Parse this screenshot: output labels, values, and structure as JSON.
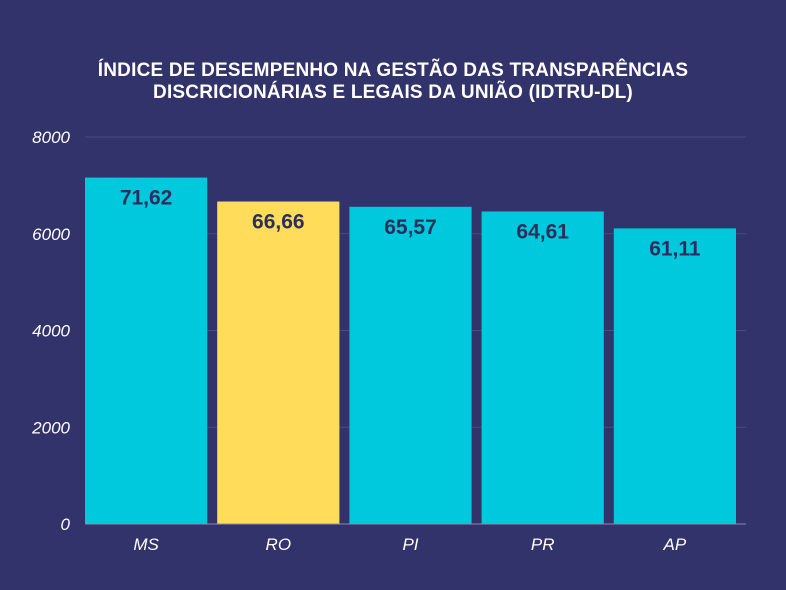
{
  "chart_data": {
    "type": "bar",
    "title_lines": [
      "ÍNDICE DE DESEMPENHO NA GESTÃO DAS TRANSPARÊNCIAS",
      "DISCRICIONÁRIAS E LEGAIS DA UNIÃO (IDTRU-DL)"
    ],
    "categories": [
      "MS",
      "RO",
      "PI",
      "PR",
      "AP"
    ],
    "values": [
      7162,
      6666,
      6557,
      6461,
      6111
    ],
    "data_labels": [
      "71,62",
      "66,66",
      "65,57",
      "64,61",
      "61,11"
    ],
    "ylim": [
      0,
      8000
    ],
    "yticks": [
      "0",
      "2000",
      "4000",
      "6000",
      "8000"
    ],
    "grid": true,
    "highlight_category": "RO",
    "colors": {
      "background": "#32336b",
      "bar": "#00c8dd",
      "highlight": "#ffdc5a",
      "data_label": "#2c2f5c",
      "axis_text": "#ffffff",
      "grid": "#4a4b82",
      "baseline": "#8a8bb0"
    }
  }
}
